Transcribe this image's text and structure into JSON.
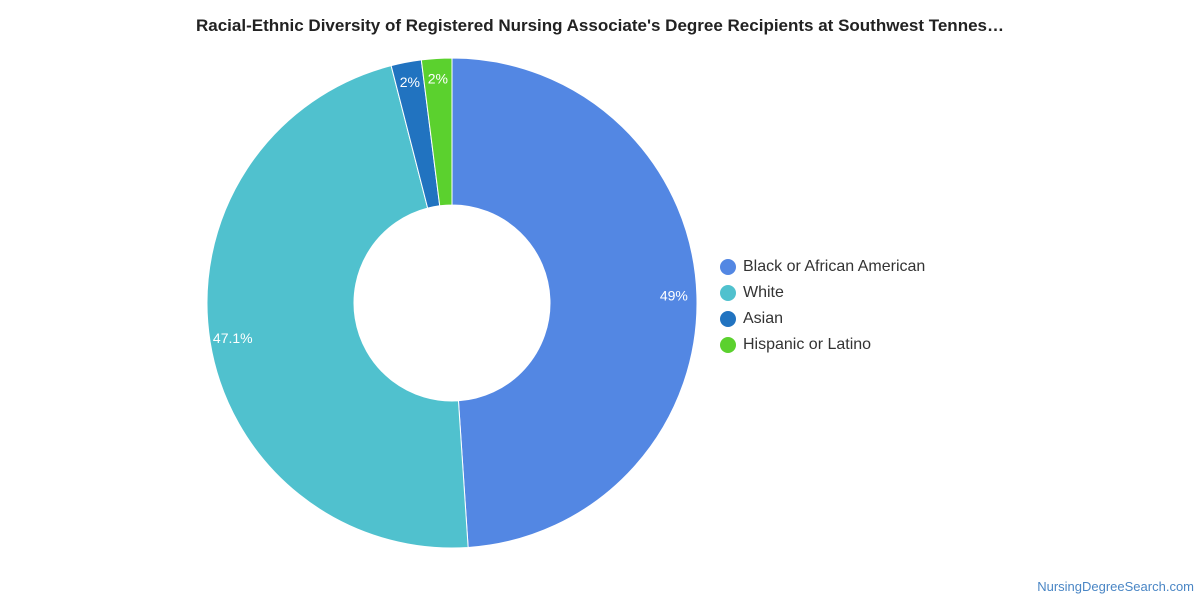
{
  "chart_data": {
    "type": "pie",
    "variant": "donut",
    "title": "Racial-Ethnic Diversity of Registered Nursing Associate's Degree Recipients at Southwest Tennes…",
    "legend_position": "right",
    "series": [
      {
        "name": "Black or African American",
        "value": 49,
        "label": "49%",
        "color": "#5387e3"
      },
      {
        "name": "White",
        "value": 47.1,
        "label": "47.1%",
        "color": "#50c1ce"
      },
      {
        "name": "Asian",
        "value": 2,
        "label": "2%",
        "color": "#2173c0"
      },
      {
        "name": "Hispanic or Latino",
        "value": 2,
        "label": "2%",
        "color": "#5bd12e"
      }
    ]
  },
  "source_credit": "NursingDegreeSearch.com"
}
